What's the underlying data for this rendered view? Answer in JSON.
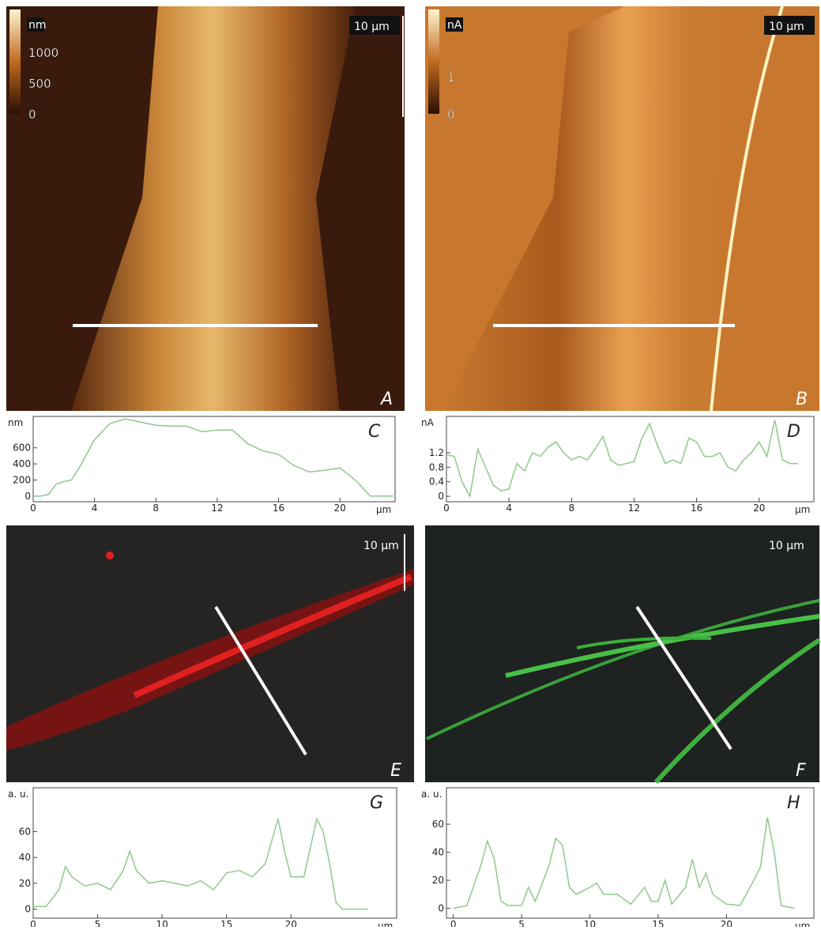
{
  "panels": [
    {
      "letter": "A",
      "scale_bar": "10 µm",
      "colorbar_title": "nm",
      "colorbar_ticks": [
        "1000",
        "500",
        "0"
      ]
    },
    {
      "letter": "B",
      "scale_bar": "10 µm",
      "colorbar_title": "nA",
      "colorbar_ticks": [
        "1",
        "0"
      ]
    },
    {
      "letter": "E",
      "scale_bar": "10 µm"
    },
    {
      "letter": "F",
      "scale_bar": "10 µm"
    }
  ],
  "chart_data": [
    {
      "type": "line",
      "letter": "C",
      "y_label": "nm",
      "x_label": "µm",
      "color": "#8fc98a",
      "x": [
        0,
        0.5,
        1,
        1.5,
        2,
        2.5,
        3,
        4,
        5,
        6,
        7,
        8,
        9,
        10,
        11,
        12,
        13,
        14,
        15,
        16,
        17,
        18,
        19,
        20,
        21,
        22,
        23,
        23.5
      ],
      "values": [
        0,
        0,
        20,
        150,
        180,
        200,
        350,
        700,
        900,
        960,
        920,
        880,
        870,
        870,
        800,
        820,
        820,
        650,
        560,
        520,
        380,
        300,
        320,
        350,
        200,
        0,
        0,
        0
      ],
      "xlim": [
        0,
        23.6
      ],
      "ylim": [
        -70,
        990
      ],
      "xticks": [
        0,
        4,
        8,
        12,
        16,
        20
      ],
      "yticks": [
        0,
        200,
        400,
        600
      ]
    },
    {
      "type": "line",
      "letter": "D",
      "y_label": "nA",
      "x_label": "µm",
      "color": "#8fc98a",
      "x": [
        0,
        0.5,
        1,
        1.5,
        2,
        2.5,
        3,
        3.5,
        4,
        4.5,
        5,
        5.5,
        6,
        6.5,
        7,
        7.5,
        8,
        8.5,
        9,
        9.5,
        10,
        10.5,
        11,
        11.5,
        12,
        12.5,
        13,
        13.5,
        14,
        14.5,
        15,
        15.5,
        16,
        16.5,
        17,
        17.5,
        18,
        18.5,
        19,
        19.5,
        20,
        20.5,
        21,
        21.5,
        22,
        22.5
      ],
      "values": [
        1.15,
        1.1,
        0.4,
        0,
        1.3,
        0.8,
        0.3,
        0.15,
        0.2,
        0.9,
        0.7,
        1.2,
        1.1,
        1.35,
        1.5,
        1.2,
        1.0,
        1.1,
        1.0,
        1.3,
        1.65,
        1.0,
        0.85,
        0.9,
        0.95,
        1.6,
        2.0,
        1.4,
        0.9,
        1.0,
        0.9,
        1.6,
        1.5,
        1.1,
        1.1,
        1.2,
        0.8,
        0.7,
        1.0,
        1.2,
        1.5,
        1.1,
        2.1,
        1.0,
        0.9,
        0.9
      ],
      "xlim": [
        0,
        23.5
      ],
      "ylim": [
        -0.15,
        2.2
      ],
      "xticks": [
        0,
        4,
        8,
        12,
        16,
        20
      ],
      "yticks": [
        0,
        0.4,
        0.8,
        1.2
      ]
    },
    {
      "type": "line",
      "letter": "G",
      "y_label": "a. u.",
      "x_label": "µm",
      "color": "#8fc98a",
      "x": [
        0,
        1,
        2,
        2.5,
        3,
        4,
        5,
        6,
        7,
        7.5,
        8,
        9,
        10,
        11,
        12,
        13,
        14,
        15,
        16,
        17,
        18,
        19,
        19.5,
        20,
        21,
        22,
        22.5,
        23,
        23.5,
        24,
        25,
        26
      ],
      "values": [
        2,
        2,
        15,
        33,
        25,
        18,
        20,
        15,
        30,
        45,
        30,
        20,
        22,
        20,
        18,
        22,
        15,
        28,
        30,
        25,
        35,
        70,
        45,
        25,
        25,
        70,
        60,
        35,
        5,
        0,
        0,
        0
      ],
      "xlim": [
        0,
        28.2
      ],
      "ylim": [
        -7,
        94
      ],
      "xticks": [
        0,
        5,
        10,
        15,
        20
      ],
      "yticks": [
        0,
        20,
        40,
        60
      ]
    },
    {
      "type": "line",
      "letter": "H",
      "y_label": "a. u.",
      "x_label": "µm",
      "color": "#8fc98a",
      "x": [
        0,
        1,
        2,
        2.5,
        3,
        3.5,
        4,
        5,
        5.5,
        6,
        7,
        7.5,
        8,
        8.5,
        9,
        10,
        10.5,
        11,
        12,
        13,
        14,
        14.5,
        15,
        15.5,
        16,
        17,
        17.5,
        18,
        18.5,
        19,
        20,
        21,
        22,
        22.5,
        23,
        23.5,
        24,
        25
      ],
      "values": [
        0,
        2,
        30,
        48,
        35,
        5,
        2,
        2,
        15,
        5,
        30,
        50,
        45,
        15,
        10,
        15,
        18,
        10,
        10,
        3,
        15,
        5,
        5,
        20,
        3,
        15,
        35,
        15,
        25,
        10,
        3,
        2,
        20,
        30,
        65,
        40,
        2,
        0
      ],
      "xlim": [
        -0.5,
        26.4
      ],
      "ylim": [
        -7,
        86
      ],
      "xticks": [
        0,
        5,
        10,
        15,
        20
      ],
      "yticks": [
        0,
        20,
        40,
        60
      ]
    }
  ]
}
